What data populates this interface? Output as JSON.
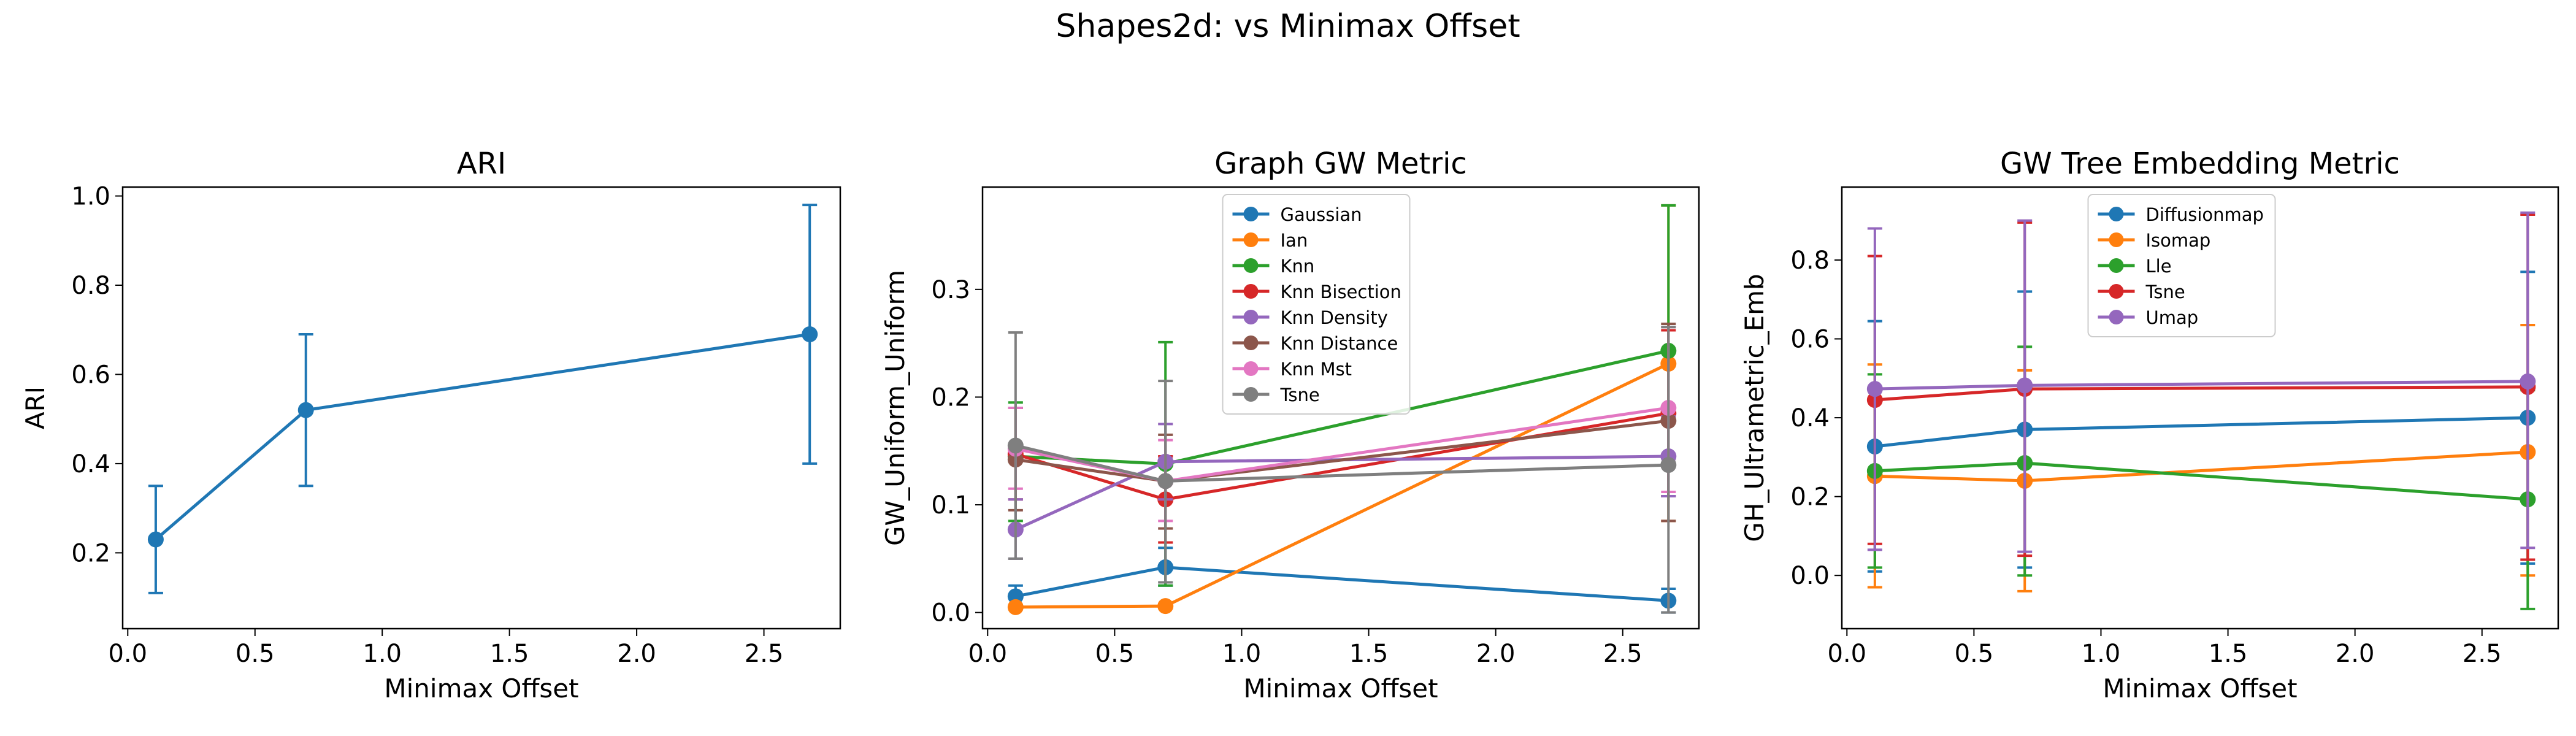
{
  "suptitle": "Shapes2d: vs Minimax Offset",
  "colors": {
    "blue": "#1f77b4",
    "orange": "#ff7f0e",
    "green": "#2ca02c",
    "red": "#d62728",
    "purple": "#9467bd",
    "brown": "#8c564b",
    "pink": "#e377c2",
    "gray": "#7f7f7f"
  },
  "chart_data": [
    {
      "type": "line",
      "title": "ARI",
      "xlabel": "Minimax Offset",
      "ylabel": "ARI",
      "xlim": [
        -0.02,
        2.8
      ],
      "ylim": [
        0.03,
        1.02
      ],
      "xticks": [
        "0.0",
        "0.5",
        "1.0",
        "1.5",
        "2.0",
        "2.5"
      ],
      "yticks": [
        "0.2",
        "0.4",
        "0.6",
        "0.8",
        "1.0"
      ],
      "x": [
        0.11,
        0.7,
        2.68
      ],
      "legend": "none",
      "grid": false,
      "series": [
        {
          "color": "blue",
          "values": [
            0.23,
            0.52,
            0.69
          ],
          "err_low": [
            0.11,
            0.35,
            0.4
          ],
          "err_high": [
            0.35,
            0.69,
            0.98
          ]
        }
      ]
    },
    {
      "type": "line",
      "title": "Graph GW Metric",
      "xlabel": "Minimax Offset",
      "ylabel": "GW_Uniform_Uniform",
      "xlim": [
        -0.02,
        2.8
      ],
      "ylim": [
        -0.015,
        0.395
      ],
      "xticks": [
        "0.0",
        "0.5",
        "1.0",
        "1.5",
        "2.0",
        "2.5"
      ],
      "yticks": [
        "0.0",
        "0.1",
        "0.2",
        "0.3"
      ],
      "x": [
        0.11,
        0.7,
        2.68
      ],
      "legend": "upper-center",
      "grid": false,
      "series": [
        {
          "name": "Gaussian",
          "color": "blue",
          "values": [
            0.015,
            0.042,
            0.011
          ],
          "err_low": [
            0.005,
            0.025,
            0.0
          ],
          "err_high": [
            0.025,
            0.06,
            0.022
          ]
        },
        {
          "name": "Ian",
          "color": "orange",
          "values": [
            0.005,
            0.006,
            0.231
          ],
          "err_low": [
            0.003,
            0.004,
            0.085
          ],
          "err_high": [
            0.007,
            0.008,
            0.378
          ]
        },
        {
          "name": "Knn",
          "color": "green",
          "values": [
            0.145,
            0.138,
            0.243
          ],
          "err_low": [
            0.085,
            0.025,
            0.108
          ],
          "err_high": [
            0.195,
            0.251,
            0.378
          ]
        },
        {
          "name": "Knn Bisection",
          "color": "red",
          "values": [
            0.147,
            0.105,
            0.185
          ],
          "err_low": [
            0.105,
            0.065,
            0.108
          ],
          "err_high": [
            0.19,
            0.145,
            0.262
          ]
        },
        {
          "name": "Knn Density",
          "color": "purple",
          "values": [
            0.077,
            0.14,
            0.145
          ],
          "err_low": [
            0.05,
            0.105,
            0.108
          ],
          "err_high": [
            0.105,
            0.175,
            0.182
          ]
        },
        {
          "name": "Knn Distance",
          "color": "brown",
          "values": [
            0.142,
            0.122,
            0.178
          ],
          "err_low": [
            0.095,
            0.078,
            0.085
          ],
          "err_high": [
            0.19,
            0.165,
            0.268
          ]
        },
        {
          "name": "Knn Mst",
          "color": "pink",
          "values": [
            0.152,
            0.122,
            0.19
          ],
          "err_low": [
            0.115,
            0.085,
            0.112
          ],
          "err_high": [
            0.19,
            0.16,
            0.265
          ]
        },
        {
          "name": "Tsne",
          "color": "gray",
          "values": [
            0.155,
            0.122,
            0.137
          ],
          "err_low": [
            0.05,
            0.028,
            0.0
          ],
          "err_high": [
            0.26,
            0.215,
            0.265
          ]
        }
      ]
    },
    {
      "type": "line",
      "title": "GW Tree Embedding Metric",
      "xlabel": "Minimax Offset",
      "ylabel": "GH_Ultrametric_Emb",
      "xlim": [
        -0.02,
        2.8
      ],
      "ylim": [
        -0.135,
        0.985
      ],
      "xticks": [
        "0.0",
        "0.5",
        "1.0",
        "1.5",
        "2.0",
        "2.5"
      ],
      "yticks": [
        "0.0",
        "0.2",
        "0.4",
        "0.6",
        "0.8"
      ],
      "x": [
        0.11,
        0.7,
        2.68
      ],
      "legend": "upper-center",
      "grid": false,
      "series": [
        {
          "name": "Diffusionmap",
          "color": "blue",
          "values": [
            0.327,
            0.37,
            0.4
          ],
          "err_low": [
            0.01,
            0.02,
            0.03
          ],
          "err_high": [
            0.645,
            0.72,
            0.77
          ]
        },
        {
          "name": "Isomap",
          "color": "orange",
          "values": [
            0.252,
            0.24,
            0.313
          ],
          "err_low": [
            -0.03,
            -0.04,
            0.0
          ],
          "err_high": [
            0.535,
            0.52,
            0.635
          ]
        },
        {
          "name": "Lle",
          "color": "green",
          "values": [
            0.265,
            0.285,
            0.193
          ],
          "err_low": [
            0.02,
            0.0,
            -0.085
          ],
          "err_high": [
            0.51,
            0.58,
            0.47
          ]
        },
        {
          "name": "Tsne",
          "color": "red",
          "values": [
            0.445,
            0.473,
            0.478
          ],
          "err_low": [
            0.08,
            0.05,
            0.04
          ],
          "err_high": [
            0.81,
            0.895,
            0.915
          ]
        },
        {
          "name": "Umap",
          "color": "purple",
          "values": [
            0.473,
            0.482,
            0.492
          ],
          "err_low": [
            0.065,
            0.06,
            0.07
          ],
          "err_high": [
            0.88,
            0.9,
            0.92
          ]
        }
      ]
    }
  ]
}
